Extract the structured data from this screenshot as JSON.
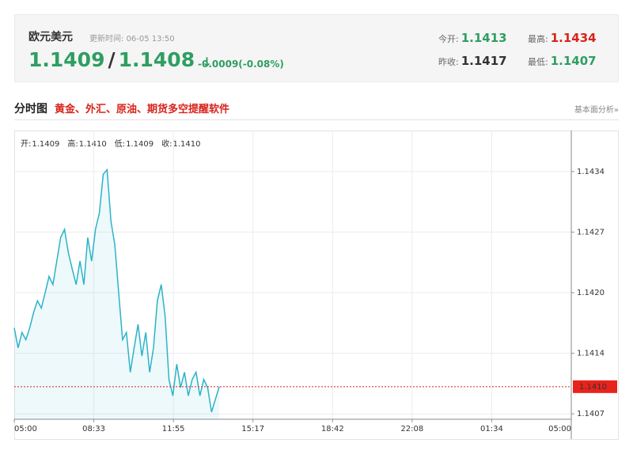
{
  "quote": {
    "name": "欧元美元",
    "update_label": "更新时间:",
    "update_time": "06-05 13:50",
    "bid": "1.1409",
    "separator": "/",
    "ask": "1.1408",
    "arrow": "↓",
    "change": "-0.0009(-0.08%)",
    "stats": [
      {
        "label": "今开:",
        "value": "1.1413"
      },
      {
        "label": "最高:",
        "value": "1.1434"
      },
      {
        "label": "昨收:",
        "value": "1.1417"
      },
      {
        "label": "最低:",
        "value": "1.1407"
      }
    ]
  },
  "section": {
    "title": "分时图",
    "promo": "黄金、外汇、原油、期货多空提醒软件",
    "link": "基本面分析»"
  },
  "chart_data": {
    "type": "line",
    "ohlc": [
      {
        "label": "开:",
        "value": "1.1409"
      },
      {
        "label": "高:",
        "value": "1.1410"
      },
      {
        "label": "低:",
        "value": "1.1409"
      },
      {
        "label": "收:",
        "value": "1.1410"
      }
    ],
    "x": [
      "05:00",
      "05:10",
      "05:20",
      "05:30",
      "05:40",
      "05:50",
      "06:00",
      "06:10",
      "06:20",
      "06:30",
      "06:40",
      "06:50",
      "07:00",
      "07:10",
      "07:20",
      "07:30",
      "07:40",
      "07:50",
      "08:00",
      "08:10",
      "08:20",
      "08:30",
      "08:40",
      "08:50",
      "09:00",
      "09:10",
      "09:20",
      "09:30",
      "09:40",
      "09:50",
      "10:00",
      "10:10",
      "10:20",
      "10:30",
      "10:40",
      "10:50",
      "11:00",
      "11:10",
      "11:20",
      "11:30",
      "11:40",
      "11:50",
      "12:00",
      "12:10",
      "12:20",
      "12:30",
      "12:40",
      "12:50",
      "13:00",
      "13:10",
      "13:20",
      "13:30",
      "13:40",
      "13:50"
    ],
    "series": [
      {
        "color": "#2bb3c8",
        "values": [
          1.14165,
          1.14143,
          1.1416,
          1.14152,
          1.14165,
          1.14182,
          1.14195,
          1.14187,
          1.14204,
          1.14222,
          1.14213,
          1.14239,
          1.14265,
          1.14274,
          1.14248,
          1.1423,
          1.14213,
          1.14239,
          1.14213,
          1.14265,
          1.14239,
          1.14274,
          1.14292,
          1.14335,
          1.1434,
          1.14283,
          1.14257,
          1.14204,
          1.14152,
          1.1416,
          1.14116,
          1.14143,
          1.14169,
          1.14134,
          1.1416,
          1.14116,
          1.14143,
          1.14195,
          1.14213,
          1.14178,
          1.14108,
          1.1409,
          1.14125,
          1.14099,
          1.14116,
          1.1409,
          1.14108,
          1.14116,
          1.1409,
          1.14108,
          1.14099,
          1.14072,
          1.14086,
          1.141
        ]
      }
    ],
    "xticks": [
      "05:00",
      "08:33",
      "11:55",
      "15:17",
      "18:42",
      "22:08",
      "01:34",
      "05:00"
    ],
    "ylim": [
      1.14064,
      1.14379
    ],
    "yticks": [
      {
        "value": 1.14338,
        "label": "1.1434"
      },
      {
        "value": 1.14271,
        "label": "1.1427"
      },
      {
        "value": 1.14204,
        "label": "1.1420"
      },
      {
        "value": 1.14137,
        "label": "1.1414"
      },
      {
        "value": 1.1407,
        "label": "1.1407"
      }
    ],
    "last_price": {
      "value": 1.141,
      "label": "1.1410"
    }
  }
}
